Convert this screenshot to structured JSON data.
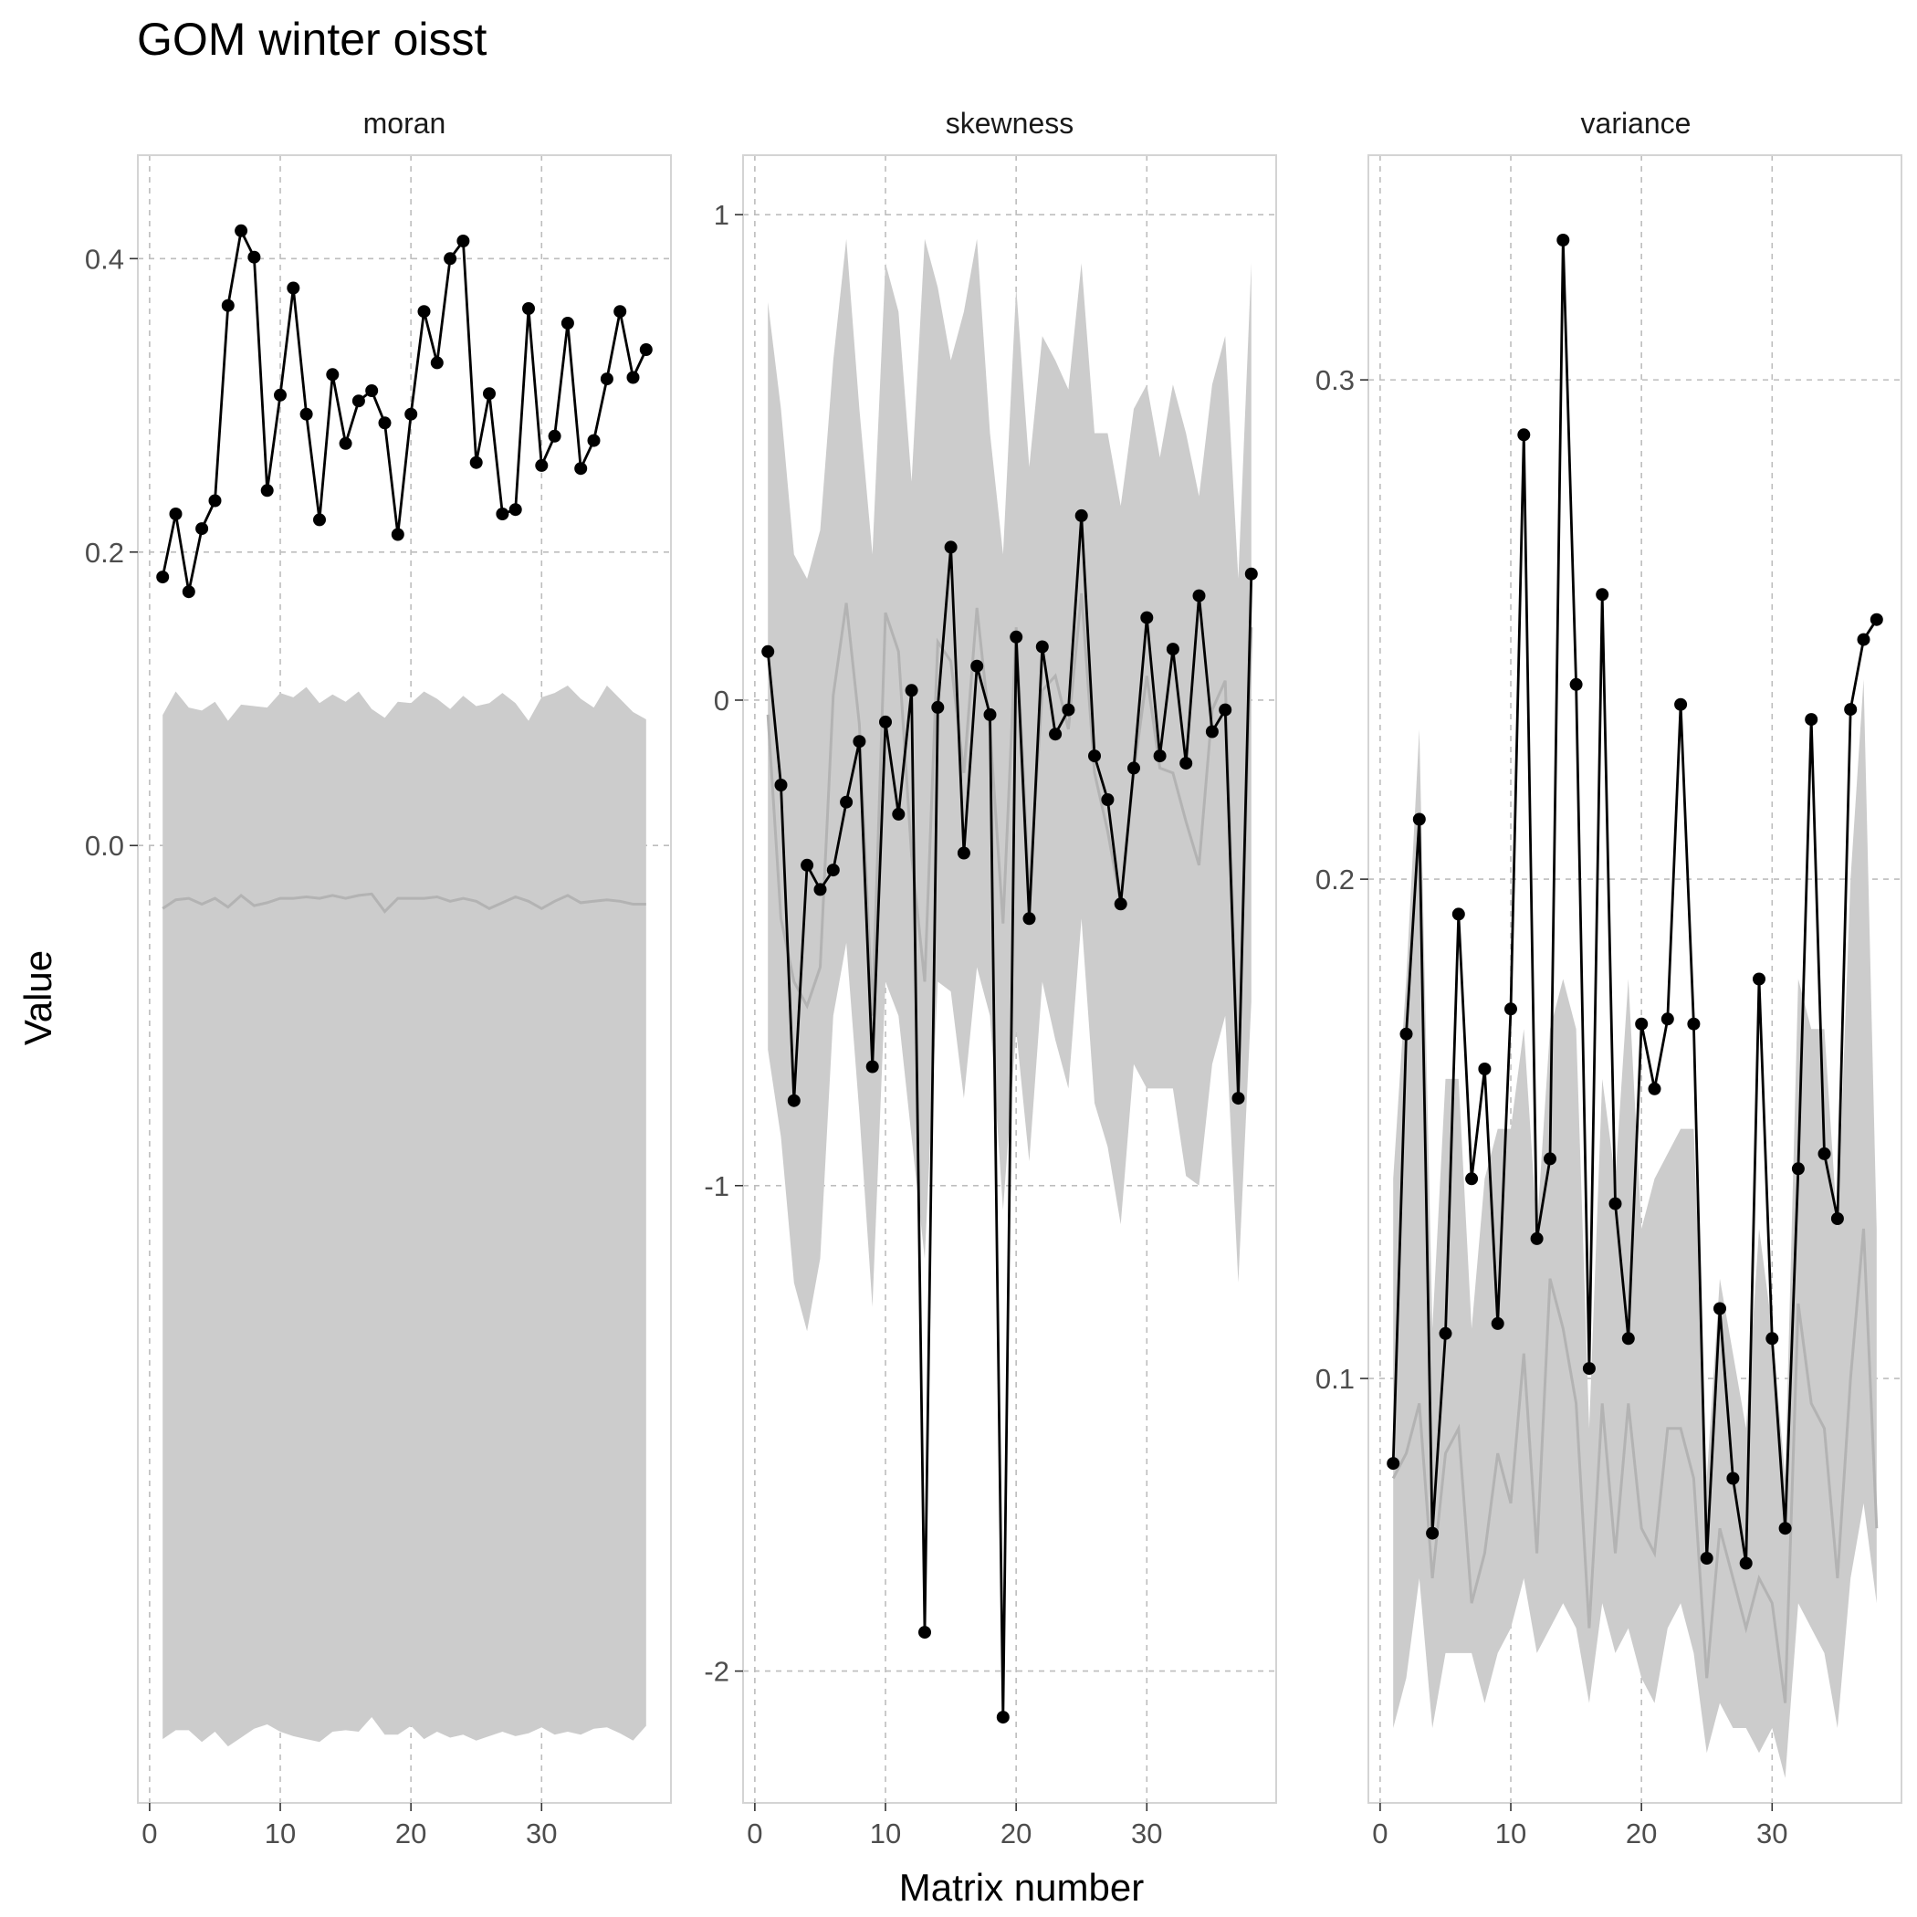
{
  "chart_data": {
    "type": "line",
    "title": "GOM winter oisst",
    "xlabel": "Matrix number",
    "ylabel": "Value",
    "grid": true,
    "grid_style": "dashed",
    "facets": [
      {
        "name": "moran",
        "xlim": [
          -0.9,
          39.9
        ],
        "ylim": [
          -0.6525,
          0.4705
        ],
        "xticks": [
          0,
          10,
          20,
          30
        ],
        "yticks": [
          0.0,
          0.2,
          0.4
        ],
        "ytick_labels": [
          "0.0",
          "0.2",
          "0.4"
        ],
        "x": [
          1,
          2,
          3,
          4,
          5,
          6,
          7,
          8,
          9,
          10,
          11,
          12,
          13,
          14,
          15,
          16,
          17,
          18,
          19,
          20,
          21,
          22,
          23,
          24,
          25,
          26,
          27,
          28,
          29,
          30,
          31,
          32,
          33,
          34,
          35,
          36,
          37,
          38
        ],
        "observed": [
          0.183,
          0.226,
          0.173,
          0.216,
          0.235,
          0.368,
          0.419,
          0.401,
          0.242,
          0.307,
          0.38,
          0.294,
          0.222,
          0.321,
          0.274,
          0.303,
          0.31,
          0.288,
          0.212,
          0.294,
          0.364,
          0.329,
          0.4,
          0.412,
          0.261,
          0.308,
          0.226,
          0.229,
          0.366,
          0.259,
          0.279,
          0.356,
          0.257,
          0.276,
          0.318,
          0.364,
          0.319,
          0.338
        ],
        "null_median": [
          -0.043,
          -0.037,
          -0.036,
          -0.04,
          -0.036,
          -0.042,
          -0.034,
          -0.041,
          -0.039,
          -0.036,
          -0.036,
          -0.035,
          -0.036,
          -0.034,
          -0.036,
          -0.034,
          -0.033,
          -0.045,
          -0.036,
          -0.036,
          -0.036,
          -0.035,
          -0.038,
          -0.036,
          -0.038,
          -0.043,
          -0.039,
          -0.035,
          -0.038,
          -0.043,
          -0.038,
          -0.034,
          -0.039,
          -0.038,
          -0.037,
          -0.038,
          -0.04,
          -0.04
        ],
        "band_lower": [
          -0.609,
          -0.603,
          -0.603,
          -0.611,
          -0.604,
          -0.614,
          -0.608,
          -0.602,
          -0.599,
          -0.604,
          -0.607,
          -0.609,
          -0.611,
          -0.604,
          -0.603,
          -0.604,
          -0.594,
          -0.606,
          -0.606,
          -0.6,
          -0.609,
          -0.604,
          -0.608,
          -0.606,
          -0.61,
          -0.607,
          -0.604,
          -0.607,
          -0.605,
          -0.601,
          -0.606,
          -0.604,
          -0.606,
          -0.602,
          -0.601,
          -0.605,
          -0.61,
          -0.6
        ],
        "band_upper": [
          0.089,
          0.105,
          0.094,
          0.092,
          0.098,
          0.085,
          0.096,
          0.095,
          0.094,
          0.104,
          0.101,
          0.108,
          0.097,
          0.103,
          0.098,
          0.105,
          0.093,
          0.087,
          0.098,
          0.097,
          0.105,
          0.1,
          0.093,
          0.102,
          0.095,
          0.097,
          0.104,
          0.097,
          0.085,
          0.101,
          0.104,
          0.109,
          0.1,
          0.094,
          0.109,
          0.1,
          0.091,
          0.086
        ]
      },
      {
        "name": "skewness",
        "xlim": [
          -0.9,
          39.9
        ],
        "ylim": [
          -2.2715,
          1.1225
        ],
        "xticks": [
          0,
          10,
          20,
          30
        ],
        "yticks": [
          -2,
          -1,
          0,
          1
        ],
        "ytick_labels": [
          "-2",
          "-1",
          "0",
          "1"
        ],
        "x": [
          1,
          2,
          3,
          4,
          5,
          6,
          7,
          8,
          9,
          10,
          11,
          12,
          13,
          14,
          15,
          16,
          17,
          18,
          19,
          20,
          21,
          22,
          23,
          24,
          25,
          26,
          27,
          28,
          29,
          30,
          31,
          32,
          33,
          34,
          35,
          36,
          37,
          38
        ],
        "observed": [
          0.1,
          -0.175,
          -0.825,
          -0.34,
          -0.39,
          -0.35,
          -0.21,
          -0.085,
          -0.755,
          -0.045,
          -0.235,
          0.02,
          -1.92,
          -0.015,
          0.315,
          -0.315,
          0.07,
          -0.03,
          -2.095,
          0.13,
          -0.45,
          0.11,
          -0.07,
          -0.02,
          0.38,
          -0.115,
          -0.205,
          -0.42,
          -0.14,
          0.17,
          -0.115,
          0.105,
          -0.13,
          0.215,
          -0.065,
          -0.02,
          -0.82,
          0.26
        ],
        "null_median": [
          -0.03,
          -0.45,
          -0.58,
          -0.63,
          -0.55,
          0.01,
          0.2,
          -0.05,
          -0.65,
          0.18,
          0.1,
          -0.32,
          -0.58,
          0.12,
          0.08,
          -0.15,
          0.19,
          -0.06,
          -0.46,
          0.15,
          -0.4,
          0.02,
          0.05,
          -0.06,
          0.22,
          -0.15,
          -0.27,
          -0.42,
          -0.15,
          0.05,
          -0.14,
          -0.15,
          -0.25,
          -0.34,
          -0.02,
          0.04,
          -0.79,
          0.15
        ],
        "band_lower": [
          -0.72,
          -0.9,
          -1.2,
          -1.3,
          -1.15,
          -0.65,
          -0.5,
          -0.85,
          -1.25,
          -0.58,
          -0.65,
          -0.9,
          -1.15,
          -0.58,
          -0.6,
          -0.82,
          -0.55,
          -0.65,
          -1.05,
          -0.68,
          -0.95,
          -0.58,
          -0.7,
          -0.8,
          -0.45,
          -0.83,
          -0.92,
          -1.08,
          -0.75,
          -0.8,
          -0.8,
          -0.8,
          -0.98,
          -1.0,
          -0.75,
          -0.65,
          -1.2,
          -0.62
        ],
        "band_upper": [
          0.82,
          0.6,
          0.3,
          0.25,
          0.35,
          0.7,
          0.95,
          0.6,
          0.3,
          0.9,
          0.8,
          0.45,
          0.95,
          0.85,
          0.7,
          0.8,
          0.95,
          0.55,
          0.3,
          0.85,
          0.48,
          0.75,
          0.7,
          0.64,
          0.9,
          0.55,
          0.55,
          0.4,
          0.6,
          0.65,
          0.5,
          0.65,
          0.55,
          0.42,
          0.65,
          0.75,
          0.25,
          0.9
        ]
      },
      {
        "name": "variance",
        "xlim": [
          -0.9,
          39.9
        ],
        "ylim": [
          0.015,
          0.345
        ],
        "xticks": [
          0,
          10,
          20,
          30
        ],
        "yticks": [
          0.1,
          0.2,
          0.3
        ],
        "ytick_labels": [
          "0.1",
          "0.2",
          "0.3"
        ],
        "x": [
          1,
          2,
          3,
          4,
          5,
          6,
          7,
          8,
          9,
          10,
          11,
          12,
          13,
          14,
          15,
          16,
          17,
          18,
          19,
          20,
          21,
          22,
          23,
          24,
          25,
          26,
          27,
          28,
          29,
          30,
          31,
          32,
          33,
          34,
          35,
          36,
          37,
          38
        ],
        "observed": [
          0.083,
          0.169,
          0.212,
          0.069,
          0.109,
          0.193,
          0.14,
          0.162,
          0.111,
          0.174,
          0.289,
          0.128,
          0.144,
          0.328,
          0.239,
          0.102,
          0.257,
          0.135,
          0.108,
          0.171,
          0.158,
          0.172,
          0.235,
          0.171,
          0.064,
          0.114,
          0.08,
          0.063,
          0.18,
          0.108,
          0.07,
          0.142,
          0.232,
          0.145,
          0.132,
          0.234,
          0.248,
          0.252
        ],
        "null_median": [
          0.08,
          0.085,
          0.095,
          0.06,
          0.085,
          0.09,
          0.055,
          0.065,
          0.085,
          0.075,
          0.105,
          0.065,
          0.12,
          0.11,
          0.095,
          0.05,
          0.095,
          0.065,
          0.095,
          0.07,
          0.065,
          0.09,
          0.09,
          0.08,
          0.04,
          0.07,
          0.06,
          0.05,
          0.06,
          0.055,
          0.035,
          0.115,
          0.095,
          0.09,
          0.06,
          0.1,
          0.13,
          0.07
        ],
        "band_lower": [
          0.03,
          0.04,
          0.06,
          0.03,
          0.045,
          0.045,
          0.045,
          0.035,
          0.045,
          0.05,
          0.06,
          0.045,
          0.05,
          0.055,
          0.05,
          0.035,
          0.055,
          0.045,
          0.05,
          0.04,
          0.035,
          0.05,
          0.055,
          0.045,
          0.025,
          0.035,
          0.03,
          0.03,
          0.025,
          0.03,
          0.02,
          0.055,
          0.05,
          0.045,
          0.03,
          0.06,
          0.075,
          0.055
        ],
        "band_upper": [
          0.14,
          0.18,
          0.23,
          0.11,
          0.16,
          0.16,
          0.11,
          0.14,
          0.15,
          0.15,
          0.17,
          0.13,
          0.17,
          0.18,
          0.17,
          0.09,
          0.16,
          0.14,
          0.18,
          0.13,
          0.14,
          0.145,
          0.15,
          0.15,
          0.08,
          0.12,
          0.105,
          0.09,
          0.13,
          0.11,
          0.08,
          0.18,
          0.17,
          0.17,
          0.13,
          0.2,
          0.24,
          0.13
        ]
      }
    ]
  }
}
